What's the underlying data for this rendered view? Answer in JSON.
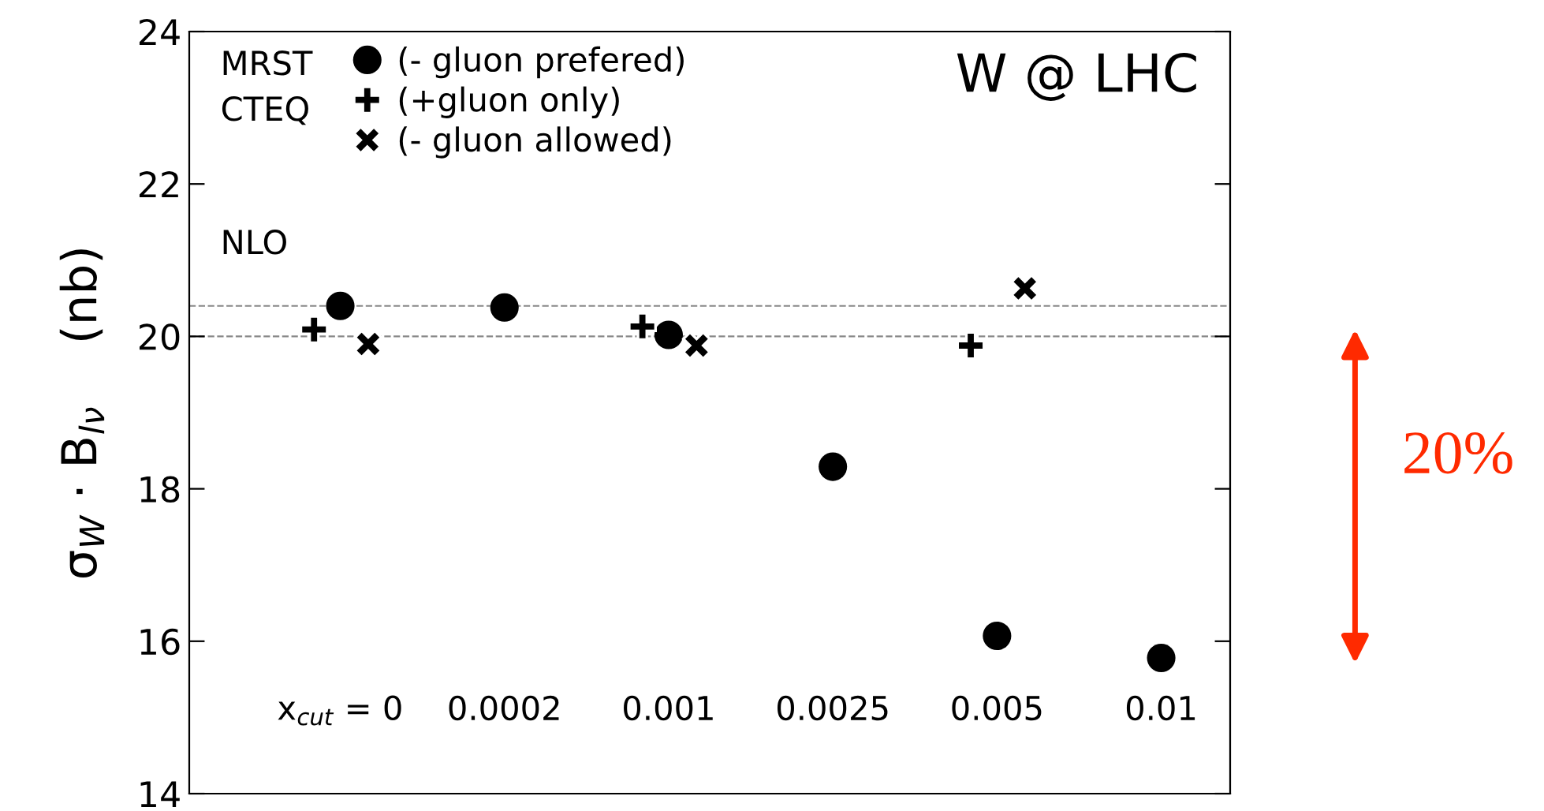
{
  "chart_data": {
    "type": "scatter",
    "ylabel": "σ$_{W}$ · B$_{lν}$    (nb)",
    "categories": [
      "x$_{cut}$ = 0",
      "0.0002",
      "0.001",
      "0.0025",
      "0.005",
      "0.01"
    ],
    "series": [
      {
        "name": "(- gluon prefered)",
        "color": "#000000",
        "marker": "circle",
        "values": [
          20.4,
          20.38,
          20.02,
          18.29,
          16.07,
          15.78
        ]
      },
      {
        "name": "(+gluon only)",
        "color": "#000000",
        "marker": "plus",
        "values": [
          20.09,
          null,
          20.13,
          null,
          19.88,
          null
        ]
      },
      {
        "name": "(- gluon allowed)",
        "color": "#000000",
        "marker": "cross",
        "values": [
          19.9,
          null,
          19.88,
          null,
          20.63,
          null
        ]
      }
    ],
    "ylim": [
      14,
      24
    ],
    "yticks": [
      14,
      16,
      18,
      20,
      22,
      24
    ],
    "ref_lines": [
      {
        "axis": "y",
        "value": 20.4,
        "color": "#888888",
        "line_style": "dashed"
      },
      {
        "axis": "y",
        "value": 20.0,
        "color": "#888888",
        "line_style": "dashed"
      }
    ],
    "annotations": [
      "MRST",
      "CTEQ",
      "NLO",
      "W @ LHC",
      "20%"
    ],
    "legend": "top left",
    "grid": false
  }
}
